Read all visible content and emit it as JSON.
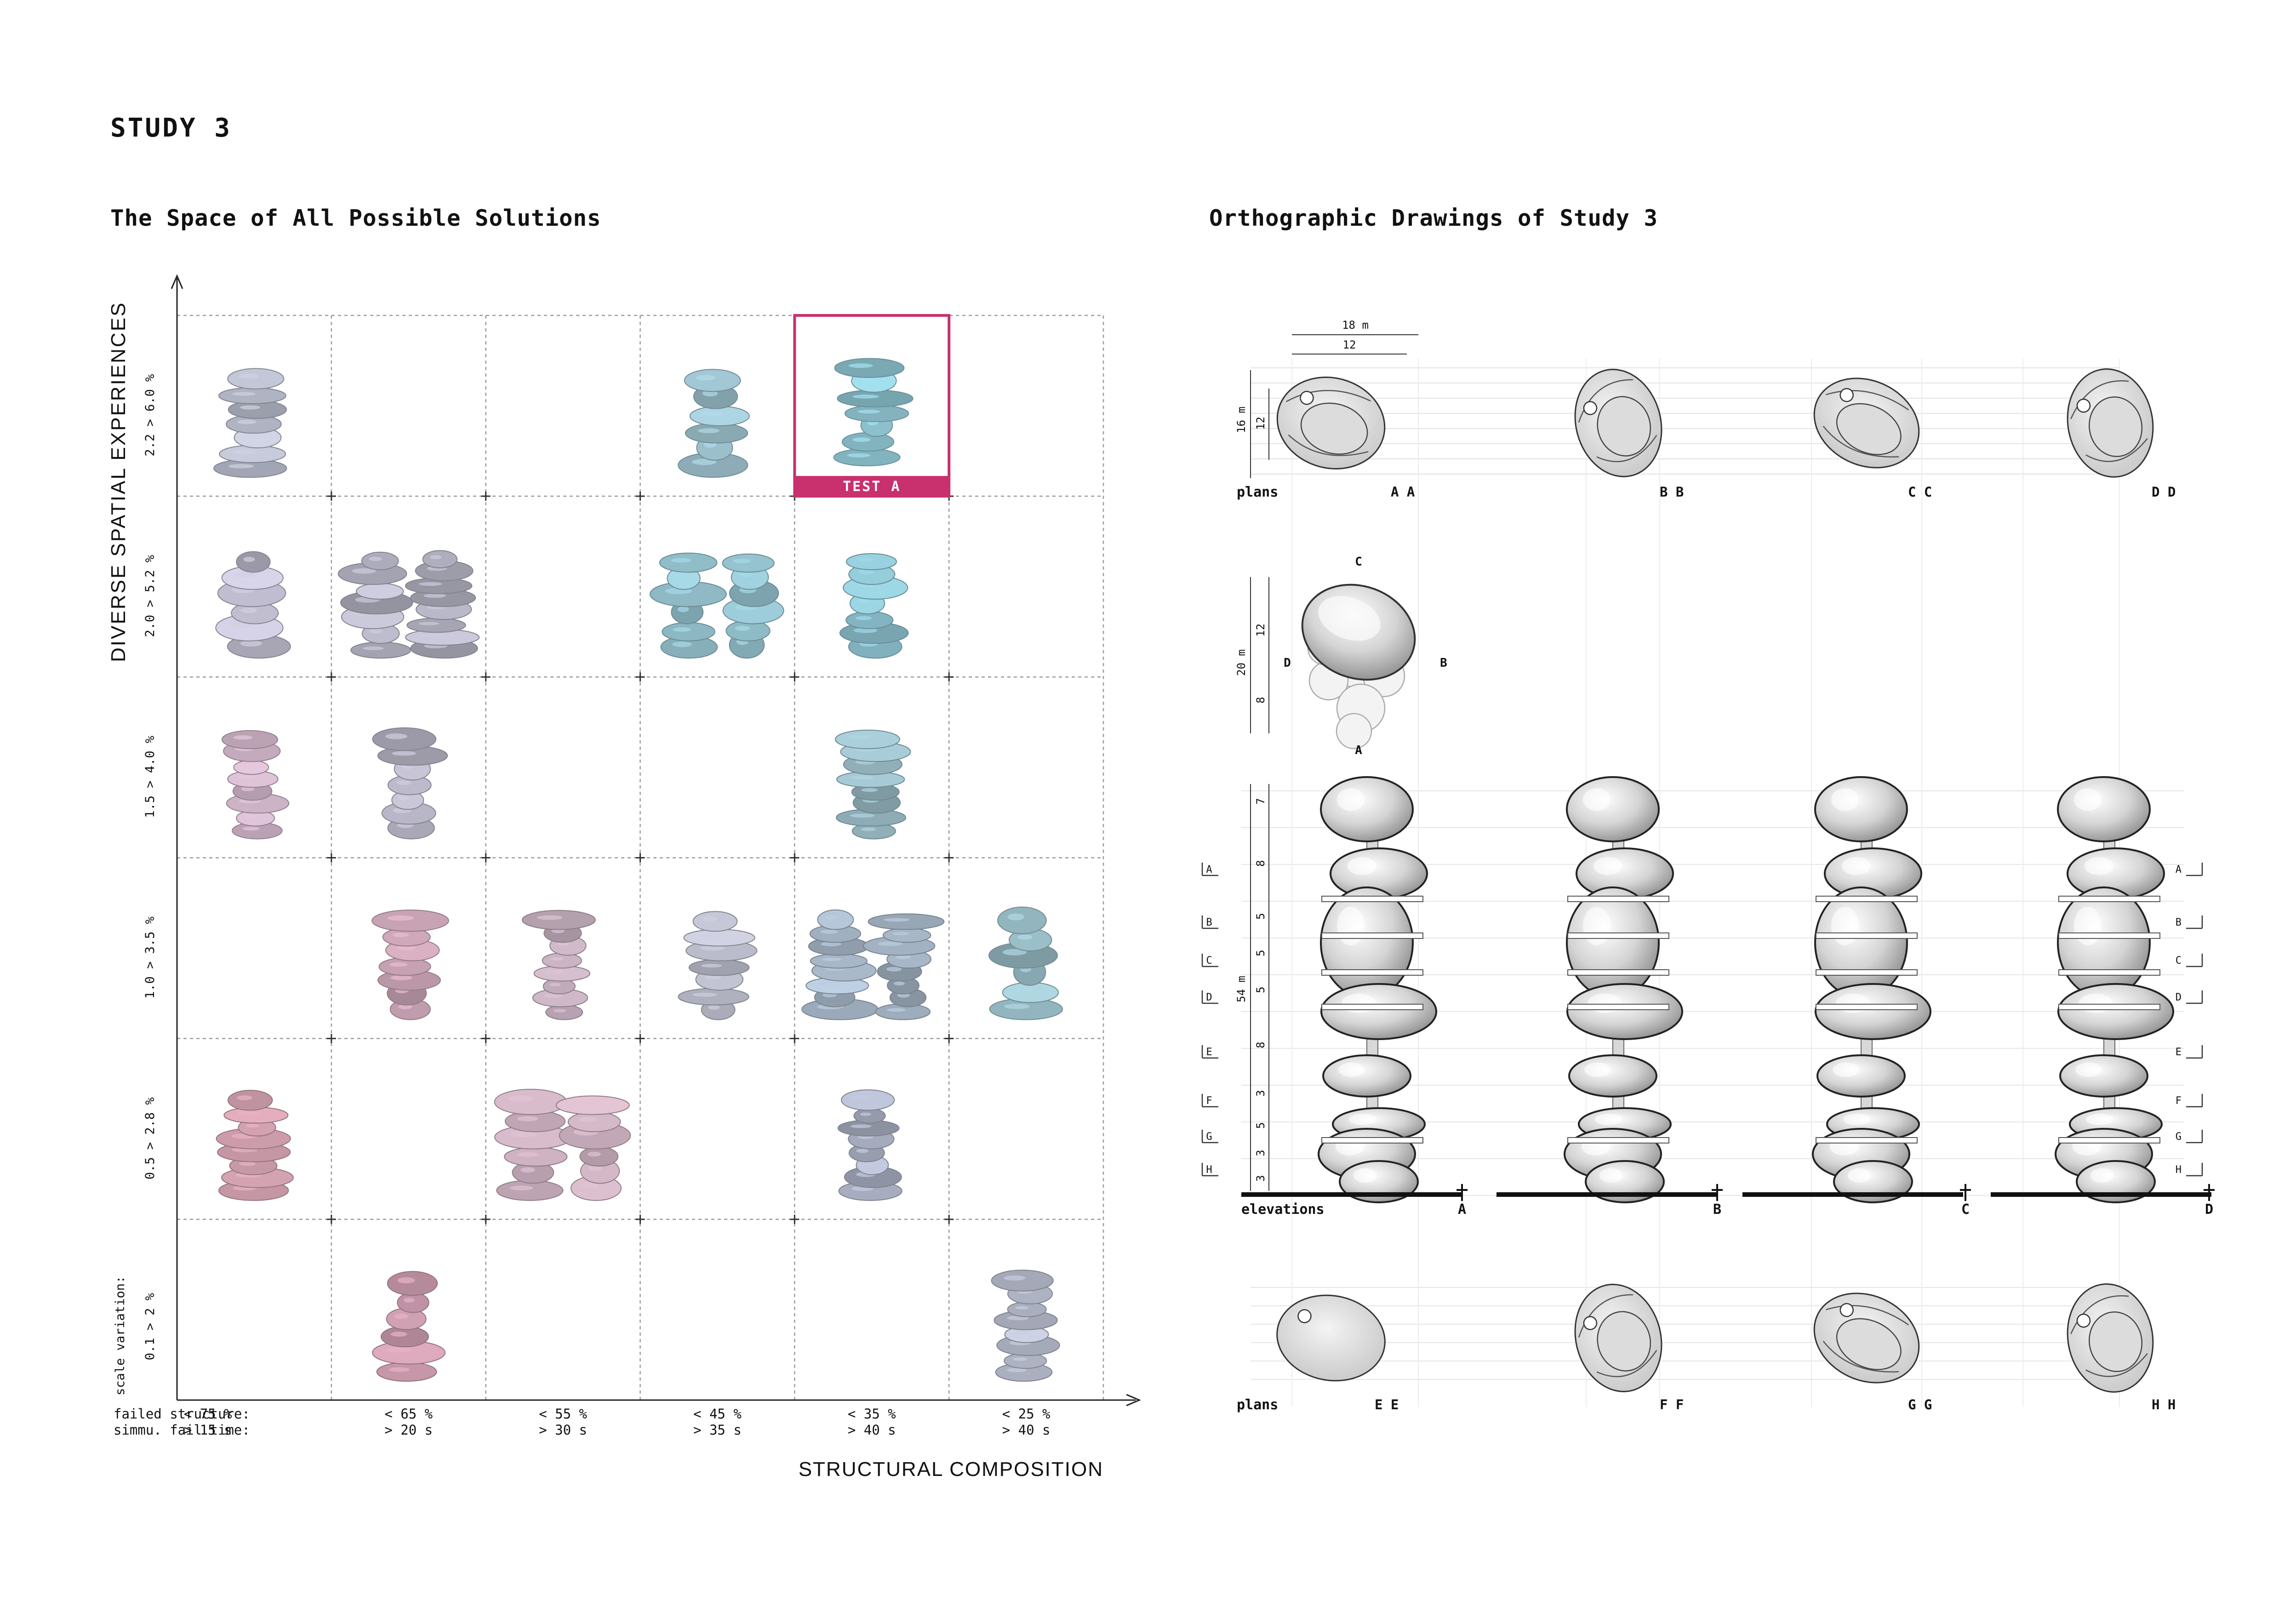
{
  "page": {
    "title": "STUDY 3"
  },
  "left": {
    "title": "The Space of All Possible Solutions",
    "y_axis_label": "DIVERSE SPATIAL EXPERIENCES",
    "x_axis_label": "STRUCTURAL COMPOSITION",
    "row_labels": [
      "2.2 > 6.0 %",
      "2.0 > 5.2 %",
      "1.5 > 4.0 %",
      "1.0 > 3.5 %",
      "0.5 > 2.8 %",
      "0.1 > 2 %"
    ],
    "row_prefix": "scale variation:",
    "bottom_labels": {
      "failed": "failed structure:",
      "simmu": "simmu. fail time:"
    },
    "columns": [
      {
        "failed": "< 75 %",
        "time": "> 15 s"
      },
      {
        "failed": "< 65 %",
        "time": "> 20 s"
      },
      {
        "failed": "< 55 %",
        "time": "> 30 s"
      },
      {
        "failed": "< 45 %",
        "time": "> 35 s"
      },
      {
        "failed": "< 35 %",
        "time": "> 40 s"
      },
      {
        "failed": "< 25 %",
        "time": "> 40 s"
      }
    ],
    "highlight": {
      "label": "TEST A",
      "row": 0,
      "col": 4,
      "color": "#c8306e"
    },
    "cells": [
      {
        "row": 0,
        "col": 0,
        "n": 1,
        "color": "#b8bccb"
      },
      {
        "row": 0,
        "col": 3,
        "n": 1,
        "color": "#9fc3cf"
      },
      {
        "row": 0,
        "col": 4,
        "n": 1,
        "color": "#93cbd8"
      },
      {
        "row": 1,
        "col": 0,
        "n": 1,
        "color": "#bcb9cb"
      },
      {
        "row": 1,
        "col": 1,
        "n": 2,
        "color": "#b7b6c6"
      },
      {
        "row": 1,
        "col": 3,
        "n": 2,
        "color": "#95c3cf"
      },
      {
        "row": 1,
        "col": 4,
        "n": 1,
        "color": "#8fc4d2"
      },
      {
        "row": 2,
        "col": 0,
        "n": 1,
        "color": "#cdb3c6"
      },
      {
        "row": 2,
        "col": 1,
        "n": 1,
        "color": "#bab8c8"
      },
      {
        "row": 2,
        "col": 4,
        "n": 1,
        "color": "#9dbfca"
      },
      {
        "row": 3,
        "col": 1,
        "n": 1,
        "color": "#d1aabb"
      },
      {
        "row": 3,
        "col": 2,
        "n": 1,
        "color": "#c5b0bf"
      },
      {
        "row": 3,
        "col": 3,
        "n": 1,
        "color": "#b8b9c8"
      },
      {
        "row": 3,
        "col": 4,
        "n": 2,
        "color": "#a7b7c8"
      },
      {
        "row": 3,
        "col": 5,
        "n": 1,
        "color": "#9dc2cc"
      },
      {
        "row": 4,
        "col": 0,
        "n": 1,
        "color": "#d2a1b0"
      },
      {
        "row": 4,
        "col": 2,
        "n": 2,
        "color": "#c9aebd"
      },
      {
        "row": 4,
        "col": 4,
        "n": 1,
        "color": "#b0b6c9"
      },
      {
        "row": 5,
        "col": 1,
        "n": 1,
        "color": "#cf9fb2"
      },
      {
        "row": 5,
        "col": 5,
        "n": 1,
        "color": "#b3b8c8"
      }
    ]
  },
  "right": {
    "title": "Orthographic Drawings of Study 3",
    "dims": {
      "width_total": "18 m",
      "width_inner": "12",
      "depth_total": "16 m",
      "depth_inner": "12",
      "mid_total": "20 m",
      "mid_a": "12",
      "mid_b": "8",
      "elev_total": "54 m"
    },
    "plans_label": "plans",
    "elevations_label": "elevations",
    "top_plan_labels": [
      "A A",
      "B B",
      "C C",
      "D D"
    ],
    "bottom_plan_labels": [
      "E E",
      "F F",
      "G G",
      "H H"
    ],
    "elevation_letters": [
      "A",
      "B",
      "C",
      "D"
    ],
    "key_markers": {
      "top": "C",
      "left": "D",
      "right": "B",
      "bottom": "A"
    },
    "section_levels": [
      "A",
      "B",
      "C",
      "D",
      "E",
      "F",
      "G",
      "H"
    ],
    "level_dims": [
      "7",
      "8",
      "5",
      "5",
      "5",
      "8",
      "3",
      "5",
      "3",
      "3"
    ]
  }
}
